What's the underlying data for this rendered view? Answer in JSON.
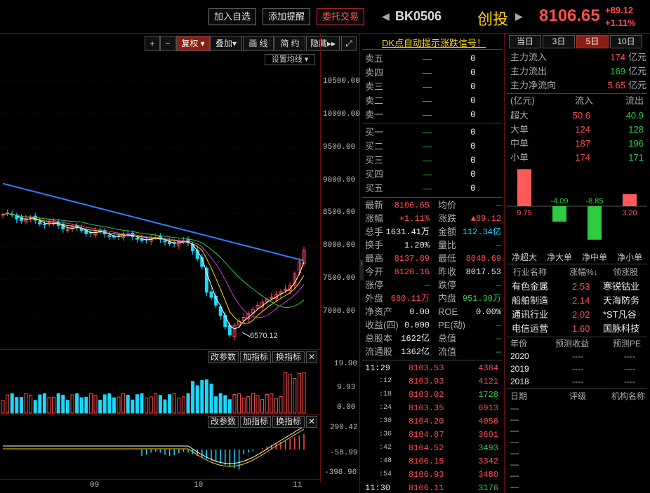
{
  "header": {
    "btn_add": "加入自选",
    "btn_alert": "添加提醒",
    "btn_trade": "委托交易",
    "code": "BK0506",
    "name": "创投",
    "price": "8106.65",
    "change": "+89.12",
    "change_pct": "+1.11%",
    "prev_arrow": "◀",
    "next_arrow": "▶"
  },
  "toolbar": {
    "plus": "+",
    "minus": "−",
    "fuquan": "复权 ▾",
    "diejia": "叠加▾",
    "huaxian": "画 线",
    "jianyue": "简 约",
    "yincang": "隐藏▸▸",
    "expand": "⤢",
    "ma_settings": "设置均线 ▾"
  },
  "chart": {
    "yticks": [
      "10500.00",
      "10000.00",
      "9500.00",
      "9000.00",
      "8500.00",
      "8000.00",
      "7500.00",
      "7000.00"
    ],
    "low_label": "6570.12",
    "x_labels": [
      "09",
      "10",
      "11"
    ],
    "vol_ticks": [
      "19.90",
      "9.93",
      "0.00"
    ],
    "macd_ticks": [
      "290.42",
      "-58.99",
      "-398.96"
    ],
    "btn_params": "改参数",
    "btn_add_ind": "加指标",
    "btn_swap_ind": "换指标",
    "btn_close": "✕"
  },
  "chart_data": {
    "type": "candlestick",
    "y_axis_ticks": [
      10500,
      10000,
      9500,
      9000,
      8500,
      8000,
      7500,
      7000
    ],
    "annotated_low": 6570.12,
    "x_axis_labels": [
      "09",
      "10",
      "11"
    ],
    "volume_axis": [
      19.9,
      9.93,
      0.0
    ],
    "macd_axis": [
      290.42,
      -58.99,
      -398.96
    ]
  },
  "quote": {
    "signal": "DK点自动提示涨跌信号！",
    "asks": [
      {
        "label": "卖五",
        "price": "—",
        "vol": "0"
      },
      {
        "label": "卖四",
        "price": "—",
        "vol": "0"
      },
      {
        "label": "卖三",
        "price": "—",
        "vol": "0"
      },
      {
        "label": "卖二",
        "price": "—",
        "vol": "0"
      },
      {
        "label": "卖一",
        "price": "—",
        "vol": "0"
      }
    ],
    "bids": [
      {
        "label": "买一",
        "price": "—",
        "vol": "0"
      },
      {
        "label": "买二",
        "price": "—",
        "vol": "0"
      },
      {
        "label": "买三",
        "price": "—",
        "vol": "0"
      },
      {
        "label": "买四",
        "price": "—",
        "vol": "0"
      },
      {
        "label": "买五",
        "price": "—",
        "vol": "0"
      }
    ],
    "stats": [
      {
        "l1": "最新",
        "v1": "8106.65",
        "c1": "red",
        "l2": "均价",
        "v2": "—",
        "c2": "green"
      },
      {
        "l1": "涨幅",
        "v1": "+1.11%",
        "c1": "red",
        "l2": "涨跌",
        "v2": "▲89.12",
        "c2": "red"
      },
      {
        "l1": "总手",
        "v1": "1631.41万",
        "c1": "white",
        "l2": "金额",
        "v2": "112.34亿",
        "c2": "cyan"
      },
      {
        "l1": "换手",
        "v1": "1.20%",
        "c1": "white",
        "l2": "量比",
        "v2": "—",
        "c2": "green"
      },
      {
        "l1": "最高",
        "v1": "8137.89",
        "c1": "red",
        "l2": "最低",
        "v2": "8048.69",
        "c2": "red"
      },
      {
        "l1": "今开",
        "v1": "8120.16",
        "c1": "red",
        "l2": "昨收",
        "v2": "8017.53",
        "c2": "white"
      },
      {
        "l1": "涨停",
        "v1": "—",
        "c1": "green",
        "l2": "跌停",
        "v2": "—",
        "c2": "green"
      },
      {
        "l1": "外盘",
        "v1": "680.11万",
        "c1": "red",
        "l2": "内盘",
        "v2": "951.30万",
        "c2": "green"
      },
      {
        "l1": "净资产",
        "v1": "0.00",
        "c1": "white",
        "l2": "ROE",
        "v2": "0.00%",
        "c2": "white"
      },
      {
        "l1": "收益(四)",
        "v1": "0.000",
        "c1": "white",
        "l2": "PE(动)",
        "v2": "—",
        "c2": "green"
      },
      {
        "l1": "总股本",
        "v1": "1622亿",
        "c1": "white",
        "l2": "总值",
        "v2": "—",
        "c2": "green"
      },
      {
        "l1": "流通股",
        "v1": "1362亿",
        "c1": "white",
        "l2": "流值",
        "v2": "—",
        "c2": "green"
      }
    ],
    "ticks": [
      {
        "t": "11:29",
        "p": "8103.53",
        "v": "4384",
        "vc": "red"
      },
      {
        "t": ":12",
        "p": "8103.93",
        "v": "4121",
        "vc": "red"
      },
      {
        "t": ":18",
        "p": "8103.02",
        "v": "1728",
        "vc": "green"
      },
      {
        "t": ":24",
        "p": "8103.35",
        "v": "6913",
        "vc": "red"
      },
      {
        "t": ":30",
        "p": "8104.20",
        "v": "4056",
        "vc": "red"
      },
      {
        "t": ":36",
        "p": "8104.87",
        "v": "3601",
        "vc": "red"
      },
      {
        "t": ":42",
        "p": "8104.52",
        "v": "3493",
        "vc": "green"
      },
      {
        "t": ":48",
        "p": "8106.15",
        "v": "3342",
        "vc": "red"
      },
      {
        "t": ":54",
        "p": "8106.93",
        "v": "3480",
        "vc": "red"
      },
      {
        "t": "11:30",
        "p": "8106.11",
        "v": "3176",
        "vc": "green"
      }
    ]
  },
  "funds": {
    "tabs": [
      "当日",
      "3日",
      "5日",
      "10日"
    ],
    "active_tab": 2,
    "rows": [
      {
        "label": "主力流入",
        "value": "174",
        "unit": "亿元",
        "color": "red"
      },
      {
        "label": "主力流出",
        "value": "169",
        "unit": "亿元",
        "color": "green"
      },
      {
        "label": "主力净流向",
        "value": "5.65",
        "unit": "亿元",
        "color": "red"
      }
    ],
    "table_header": {
      "unit": "(亿元)",
      "in": "流入",
      "out": "流出"
    },
    "table": [
      {
        "label": "超大",
        "in": "50.6",
        "out": "40.9"
      },
      {
        "label": "大单",
        "in": "124",
        "out": "128"
      },
      {
        "label": "中单",
        "in": "187",
        "out": "196"
      },
      {
        "label": "小单",
        "in": "174",
        "out": "171"
      }
    ],
    "bars": [
      {
        "label": "净超大",
        "value": 9.75,
        "text": "9.75"
      },
      {
        "label": "净大单",
        "value": -4.09,
        "text": "-4.09"
      },
      {
        "label": "净中单",
        "value": -8.85,
        "text": "-8.85"
      },
      {
        "label": "净小单",
        "value": 3.2,
        "text": "3.20"
      }
    ],
    "industry_header": {
      "name": "行业名称",
      "pct": "涨幅%↓",
      "lead": "领涨股"
    },
    "industries": [
      {
        "name": "有色金属",
        "pct": "2.53",
        "lead": "寒锐钴业"
      },
      {
        "name": "船舶制造",
        "pct": "2.14",
        "lead": "天海防务"
      },
      {
        "name": "通讯行业",
        "pct": "2.02",
        "lead": "*ST凡谷"
      },
      {
        "name": "电信运营",
        "pct": "1.60",
        "lead": "国脉科技"
      }
    ],
    "forecast_header": {
      "year": "年份",
      "eps": "预测收益",
      "pe": "预测PE"
    },
    "forecast": [
      {
        "year": "2020",
        "eps": "----",
        "pe": "----"
      },
      {
        "year": "2019",
        "eps": "----",
        "pe": "----"
      },
      {
        "year": "2018",
        "eps": "----",
        "pe": "----"
      }
    ],
    "rating_header": {
      "date": "日期",
      "rating": "评级",
      "org": "机构名称"
    },
    "ratings": [
      "—",
      "—",
      "—",
      "—",
      "—",
      "—",
      "—",
      "—"
    ]
  }
}
